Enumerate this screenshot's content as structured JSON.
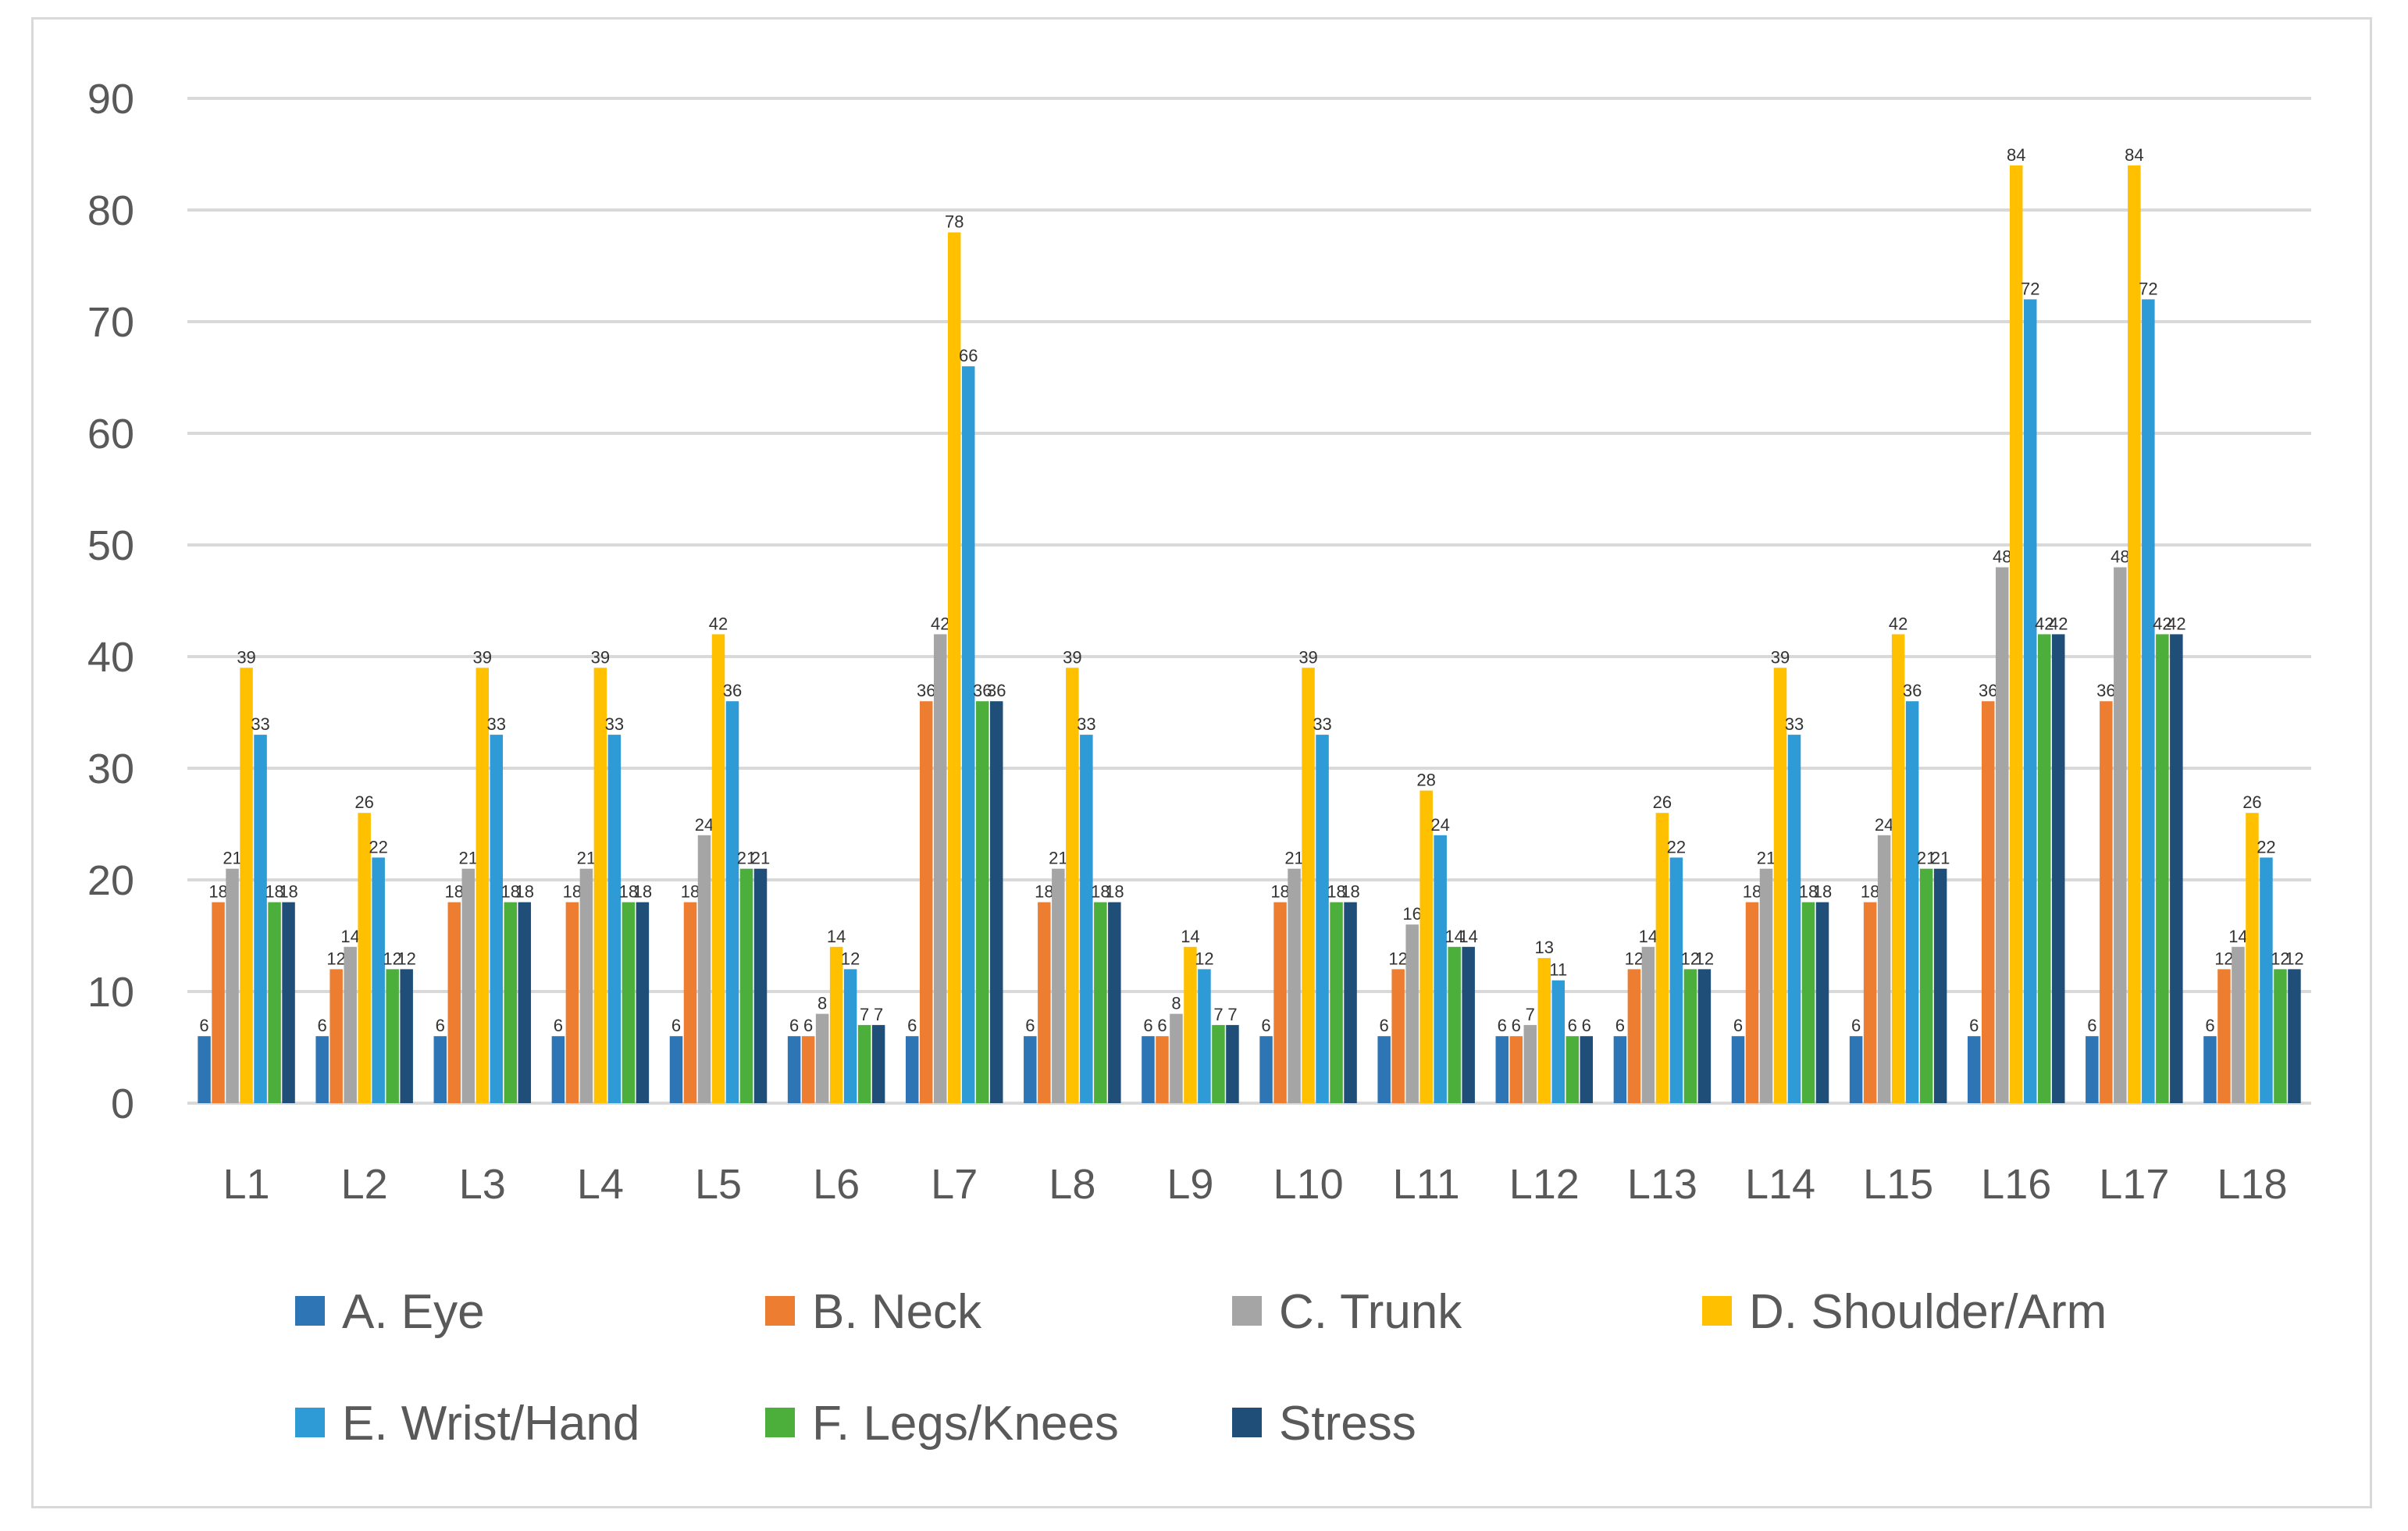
{
  "chart_data": {
    "type": "bar",
    "title": "",
    "xlabel": "",
    "ylabel": "",
    "ylim": [
      0,
      90
    ],
    "yticks": [
      0,
      10,
      20,
      30,
      40,
      50,
      60,
      70,
      80,
      90
    ],
    "grid": true,
    "legend_position": "bottom",
    "categories": [
      "L1",
      "L2",
      "L3",
      "L4",
      "L5",
      "L6",
      "L7",
      "L8",
      "L9",
      "L10",
      "L11",
      "L12",
      "L13",
      "L14",
      "L15",
      "L16",
      "L17",
      "L18"
    ],
    "series": [
      {
        "name": "A. Eye",
        "color": "#2e75b6",
        "values": [
          6,
          6,
          6,
          6,
          6,
          6,
          6,
          6,
          6,
          6,
          6,
          6,
          6,
          6,
          6,
          6,
          6,
          6
        ]
      },
      {
        "name": "B. Neck",
        "color": "#ed7d31",
        "values": [
          18,
          12,
          18,
          18,
          18,
          6,
          36,
          18,
          6,
          18,
          12,
          6,
          12,
          18,
          18,
          36,
          36,
          12
        ]
      },
      {
        "name": "C. Trunk",
        "color": "#a5a5a5",
        "values": [
          21,
          14,
          21,
          21,
          24,
          8,
          42,
          21,
          8,
          21,
          16,
          7,
          14,
          21,
          24,
          48,
          48,
          14
        ]
      },
      {
        "name": "D. Shoulder/Arm",
        "color": "#ffc000",
        "values": [
          39,
          26,
          39,
          39,
          42,
          14,
          78,
          39,
          14,
          39,
          28,
          13,
          26,
          39,
          42,
          84,
          84,
          26
        ]
      },
      {
        "name": "E. Wrist/Hand",
        "color": "#2e9bd6",
        "values": [
          33,
          22,
          33,
          33,
          36,
          12,
          66,
          33,
          12,
          33,
          24,
          11,
          22,
          33,
          36,
          72,
          72,
          22
        ]
      },
      {
        "name": "F. Legs/Knees",
        "color": "#4caf3c",
        "values": [
          18,
          12,
          18,
          18,
          21,
          7,
          36,
          18,
          7,
          18,
          14,
          6,
          12,
          18,
          21,
          42,
          42,
          12
        ]
      },
      {
        "name": "Stress",
        "color": "#1f4e79",
        "values": [
          18,
          12,
          18,
          18,
          21,
          7,
          36,
          18,
          7,
          18,
          14,
          6,
          12,
          18,
          21,
          42,
          42,
          12
        ]
      }
    ]
  }
}
